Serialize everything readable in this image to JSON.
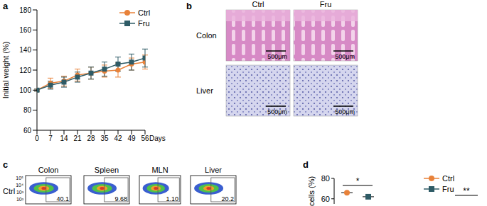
{
  "panel_labels": [
    "a",
    "b",
    "c",
    "d"
  ],
  "chart_data": [
    {
      "type": "line",
      "ylabel": "Initial weight (%)",
      "xlabel": "Days",
      "x": [
        0,
        7,
        14,
        21,
        28,
        35,
        42,
        49,
        56
      ],
      "xlim": [
        0,
        56
      ],
      "xticks": [
        0,
        7,
        14,
        21,
        28,
        35,
        42,
        49,
        56
      ],
      "ylim": [
        60,
        180
      ],
      "yticks": [
        60,
        80,
        100,
        120,
        140,
        160,
        180
      ],
      "legend": "upper right",
      "series": [
        {
          "name": "Ctrl",
          "color": "#e8823a",
          "marker": "circle",
          "values": [
            100,
            107,
            109,
            115,
            117,
            119,
            120,
            126,
            128
          ],
          "errors": [
            1,
            5,
            5,
            6,
            6,
            6,
            7,
            6,
            7
          ]
        },
        {
          "name": "Fru",
          "color": "#2e5b66",
          "marker": "square",
          "values": [
            100,
            105,
            108,
            113,
            117,
            121,
            126,
            128,
            132
          ],
          "errors": [
            1,
            4,
            5,
            5,
            6,
            7,
            7,
            8,
            9
          ]
        }
      ]
    },
    {
      "type": "scatter",
      "ylabel": "cells (%)",
      "ylim": [
        55,
        80
      ],
      "yticks": [
        60,
        80
      ],
      "legend": "upper right",
      "series": [
        {
          "name": "Ctrl",
          "color": "#e8823a",
          "marker": "circle",
          "values": [
            66
          ]
        },
        {
          "name": "Fru",
          "color": "#2e5b66",
          "marker": "square",
          "values": [
            62
          ]
        }
      ],
      "annotations": [
        "*",
        "**"
      ]
    }
  ],
  "histology": {
    "columns": [
      "Ctrl",
      "Fru"
    ],
    "rows": [
      "Colon",
      "Liver"
    ],
    "scale_bar": "500μm"
  },
  "flow": {
    "row_label": "Ctrl",
    "axis_ticks": [
      "10⁵",
      "10⁴",
      "10³",
      "10²"
    ],
    "plots": [
      {
        "title": "Colon",
        "gate_value": "40.1"
      },
      {
        "title": "Spleen",
        "gate_value": "9.68"
      },
      {
        "title": "MLN",
        "gate_value": "1.10"
      },
      {
        "title": "Liver",
        "gate_value": "20.2"
      }
    ]
  }
}
